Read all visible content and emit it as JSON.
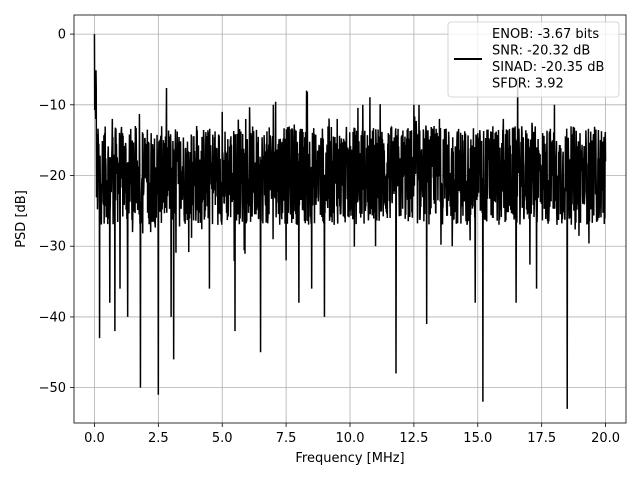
{
  "chart_data": {
    "type": "line",
    "title": "",
    "xlabel": "Frequency [MHz]",
    "ylabel": "PSD [dB]",
    "xlim": [
      -0.8,
      20.8
    ],
    "ylim": [
      -55,
      2.7
    ],
    "x_ticks": [
      0.0,
      2.5,
      5.0,
      7.5,
      10.0,
      12.5,
      15.0,
      17.5,
      20.0
    ],
    "x_tick_labels": [
      "0.0",
      "2.5",
      "5.0",
      "7.5",
      "10.0",
      "12.5",
      "15.0",
      "17.5",
      "20.0"
    ],
    "y_ticks": [
      0,
      -10,
      -20,
      -30,
      -40,
      -50
    ],
    "y_tick_labels": [
      "0",
      "−10",
      "−20",
      "−30",
      "−40",
      "−50"
    ],
    "grid": true,
    "legend_position": "top-right",
    "legend_lines": [
      "ENOB: -3.67 bits",
      "SNR: -20.32 dB",
      "SINAD: -20.35 dB",
      "SFDR: 3.92"
    ],
    "series": [
      {
        "color": "#000000",
        "sampling": "dense noise trace, piecewise-linear between listed points",
        "x": [
          0.0,
          0.02,
          0.05,
          0.1,
          0.15,
          0.2,
          0.3,
          0.4,
          0.5,
          0.6,
          0.7,
          0.8,
          0.9,
          1.0,
          1.1,
          1.2,
          1.3,
          1.4,
          1.5,
          1.6,
          1.8,
          2.0,
          2.2,
          2.5,
          2.7,
          3.0,
          3.1,
          3.5,
          4.0,
          4.5,
          5.0,
          5.5,
          6.0,
          6.5,
          7.0,
          7.5,
          7.8,
          8.0,
          8.3,
          8.5,
          8.8,
          9.0,
          9.5,
          10.0,
          10.5,
          11.0,
          11.5,
          11.8,
          12.0,
          12.5,
          13.0,
          13.3,
          13.5,
          14.0,
          14.5,
          14.9,
          15.0,
          15.2,
          15.5,
          16.0,
          16.5,
          17.0,
          17.3,
          17.5,
          18.0,
          18.5,
          19.0,
          19.5,
          20.0
        ],
        "y": [
          0,
          -8,
          -12,
          -22,
          -15,
          -43,
          -20,
          -14,
          -24,
          -38,
          -12,
          -42,
          -18,
          -36,
          -14,
          -22,
          -40,
          -16,
          -26,
          -13,
          -50,
          -18,
          -28,
          -51,
          -15,
          -40,
          -46,
          -22,
          -13,
          -36,
          -11,
          -42,
          -24,
          -45,
          -10,
          -32,
          -18,
          -38,
          -8,
          -36,
          -20,
          -40,
          -12,
          -25,
          -10,
          -30,
          -14,
          -48,
          -20,
          -10,
          -41,
          -24,
          -12,
          -30,
          -20,
          -38,
          -14,
          -52,
          -22,
          -12,
          -38,
          -16,
          -36,
          -22,
          -10,
          -53,
          -14,
          -22,
          -18
        ]
      }
    ]
  }
}
